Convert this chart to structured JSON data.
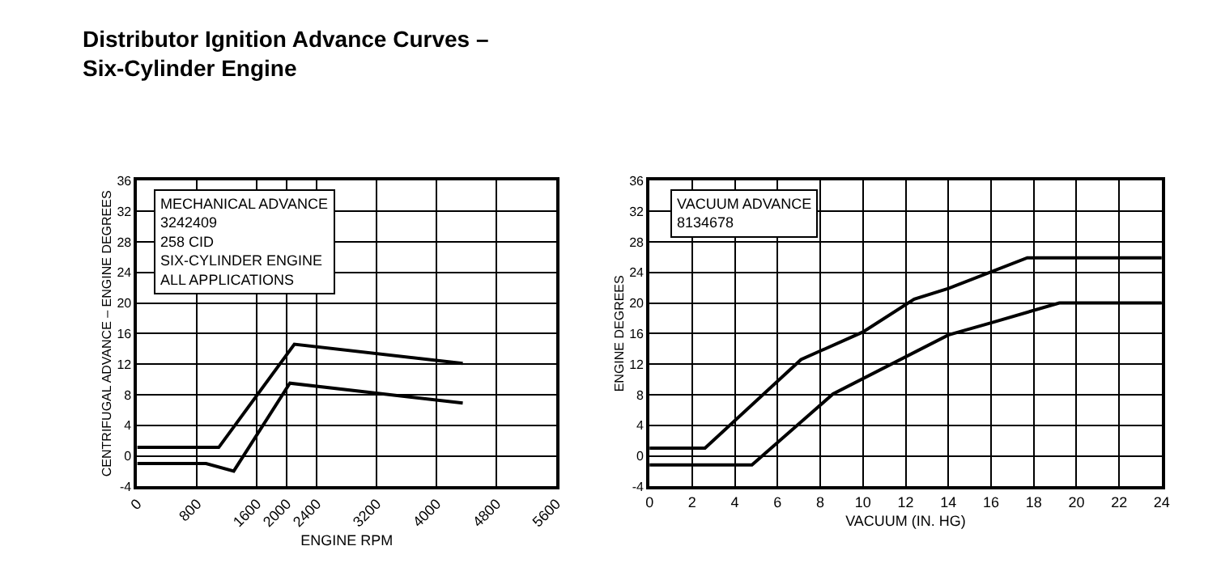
{
  "chart_data": [
    {
      "type": "line",
      "title": "Distributor Ignition Advance Curves –\nSix-Cylinder Engine",
      "xlabel": "ENGINE RPM",
      "ylabel": "CENTRIFUGAL ADVANCE – ENGINE DEGREES",
      "annotations": [
        "MECHANICAL ADVANCE",
        "3242409",
        "258 CID",
        "SIX-CYLINDER ENGINE",
        "ALL APPLICATIONS"
      ],
      "series": [
        {
          "color": "#000000",
          "x": [
            0,
            1090,
            2100,
            4350
          ],
          "values": [
            1.1,
            1.1,
            14.6,
            12.1
          ]
        },
        {
          "color": "#000000",
          "x": [
            0,
            920,
            1290,
            2040,
            4350
          ],
          "values": [
            -1,
            -1,
            -2,
            9.5,
            6.9
          ]
        }
      ],
      "xlim": [
        0,
        5600
      ],
      "xticks": [
        0,
        800,
        1600,
        {
          "value": 2000,
          "label": "2000"
        },
        2400,
        3200,
        4000,
        4800,
        5600
      ],
      "ylim": [
        -4,
        36
      ],
      "yticks": [
        -4,
        0,
        4,
        8,
        12,
        16,
        20,
        24,
        28,
        32,
        36
      ],
      "grid": true
    },
    {
      "type": "line",
      "xlabel": "VACUUM (IN. HG)",
      "ylabel": "ENGINE DEGREES",
      "annotations": [
        "VACUUM ADVANCE",
        "8134678"
      ],
      "series": [
        {
          "color": "#000000",
          "x": [
            0,
            2.6,
            7.1,
            10,
            12.4,
            14,
            17.7,
            24
          ],
          "values": [
            1,
            1,
            12.6,
            16.2,
            20.5,
            21.9,
            25.9,
            25.9
          ]
        },
        {
          "color": "#000000",
          "x": [
            0,
            4.8,
            8.6,
            14,
            16,
            19.2,
            24
          ],
          "values": [
            -1.2,
            -1.2,
            8.1,
            15.8,
            17.4,
            20,
            20
          ]
        }
      ],
      "xlim": [
        0,
        24
      ],
      "xticks": [
        0,
        2,
        4,
        6,
        8,
        10,
        12,
        14,
        16,
        18,
        20,
        22,
        24
      ],
      "ylim": [
        -4,
        36
      ],
      "yticks": [
        -4,
        0,
        4,
        8,
        12,
        16,
        20,
        24,
        28,
        32,
        36
      ],
      "grid": true
    }
  ]
}
